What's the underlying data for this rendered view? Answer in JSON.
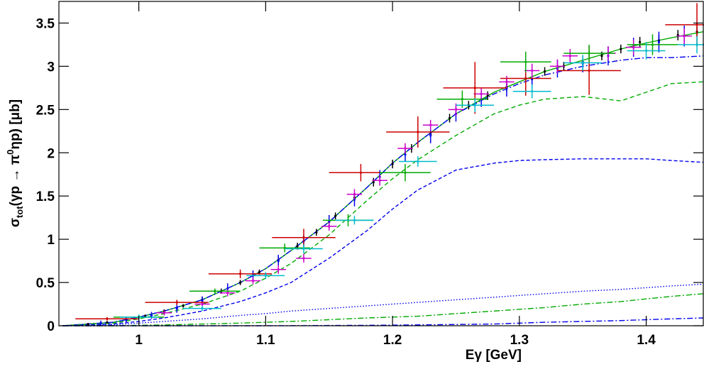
{
  "chart_data": {
    "type": "errorbar",
    "x_label": "Eγ  [GeV]",
    "y_label_parts": [
      "σ",
      "tot",
      "(γp → π",
      "0",
      "ηp)  [μb]"
    ],
    "xlim": [
      0.937,
      1.445
    ],
    "ylim": [
      0,
      3.75
    ],
    "xticks": [
      1,
      1.1,
      1.2,
      1.3,
      1.4
    ],
    "yticks": [
      0,
      0.5,
      1,
      1.5,
      2,
      2.5,
      3,
      3.5
    ],
    "series": [
      {
        "color": "#000000",
        "x": [
          0.96,
          0.975,
          0.99,
          1.005,
          1.02,
          1.035,
          1.05,
          1.065,
          1.08,
          1.095,
          1.11,
          1.125,
          1.14,
          1.155,
          1.17,
          1.185,
          1.2,
          1.215,
          1.23,
          1.245,
          1.26,
          1.275,
          1.29,
          1.305,
          1.32,
          1.335,
          1.35,
          1.365,
          1.38,
          1.395,
          1.41,
          1.425,
          1.44
        ],
        "values": [
          0.02,
          0.04,
          0.07,
          0.11,
          0.17,
          0.23,
          0.3,
          0.4,
          0.5,
          0.62,
          0.76,
          0.92,
          1.08,
          1.27,
          1.48,
          1.66,
          1.87,
          2.05,
          2.22,
          2.4,
          2.55,
          2.66,
          2.76,
          2.86,
          2.94,
          3.0,
          3.05,
          3.12,
          3.2,
          3.28,
          3.3,
          3.36,
          3.4
        ],
        "yerr": [
          0.01,
          0.01,
          0.02,
          0.02,
          0.02,
          0.02,
          0.03,
          0.03,
          0.03,
          0.03,
          0.04,
          0.04,
          0.04,
          0.04,
          0.04,
          0.05,
          0.05,
          0.05,
          0.05,
          0.05,
          0.05,
          0.05,
          0.05,
          0.05,
          0.05,
          0.05,
          0.05,
          0.05,
          0.05,
          0.06,
          0.06,
          0.06,
          0.06
        ]
      },
      {
        "color": "#0000ee",
        "x": [
          0.97,
          0.99,
          1.01,
          1.03,
          1.05,
          1.07,
          1.09,
          1.11,
          1.13,
          1.15,
          1.17,
          1.19,
          1.21,
          1.23,
          1.25,
          1.27,
          1.29,
          1.31,
          1.33,
          1.35,
          1.37,
          1.39,
          1.41,
          1.43
        ],
        "values": [
          0.03,
          0.07,
          0.12,
          0.2,
          0.29,
          0.43,
          0.58,
          0.75,
          0.98,
          1.2,
          1.46,
          1.72,
          1.98,
          2.2,
          2.45,
          2.62,
          2.75,
          2.85,
          2.97,
          3.03,
          3.12,
          3.22,
          3.28,
          3.35
        ],
        "yerr": [
          0.03,
          0.03,
          0.04,
          0.05,
          0.05,
          0.06,
          0.06,
          0.07,
          0.07,
          0.08,
          0.08,
          0.08,
          0.08,
          0.09,
          0.09,
          0.09,
          0.1,
          0.1,
          0.1,
          0.1,
          0.11,
          0.11,
          0.12,
          0.12
        ]
      },
      {
        "color": "#cc00cc",
        "x": [
          1.02,
          1.05,
          1.07,
          1.09,
          1.11,
          1.13,
          1.15,
          1.17,
          1.19,
          1.21,
          1.23,
          1.25,
          1.27,
          1.29,
          1.31,
          1.33,
          1.34,
          1.37,
          1.39,
          1.43
        ],
        "values": [
          0.15,
          0.25,
          0.38,
          0.52,
          0.65,
          0.78,
          1.15,
          1.52,
          1.68,
          2.05,
          2.32,
          2.5,
          2.68,
          2.82,
          2.95,
          3.0,
          3.12,
          3.15,
          3.22,
          3.35
        ],
        "xerr": [
          0.006,
          0.006,
          0.006,
          0.006,
          0.006,
          0.006,
          0.006,
          0.006,
          0.006,
          0.006,
          0.006,
          0.006,
          0.006,
          0.006,
          0.006,
          0.006,
          0.006,
          0.006,
          0.006,
          0.006
        ],
        "yerr": [
          0.03,
          0.03,
          0.04,
          0.04,
          0.05,
          0.05,
          0.05,
          0.06,
          0.06,
          0.06,
          0.06,
          0.07,
          0.07,
          0.07,
          0.08,
          0.08,
          0.08,
          0.08,
          0.09,
          0.09
        ]
      },
      {
        "color": "#cc0000",
        "x": [
          0.975,
          1.03,
          1.08,
          1.13,
          1.175,
          1.22,
          1.265,
          1.305,
          1.355,
          1.44
        ],
        "values": [
          0.08,
          0.27,
          0.6,
          1.02,
          1.77,
          2.24,
          2.75,
          2.86,
          2.95,
          3.48
        ],
        "xerr": [
          0.025,
          0.025,
          0.025,
          0.025,
          0.025,
          0.025,
          0.025,
          0.02,
          0.025,
          0.025
        ],
        "yerr": [
          0.02,
          0.03,
          0.05,
          0.1,
          0.1,
          0.18,
          0.3,
          0.2,
          0.28,
          0.25
        ]
      },
      {
        "color": "#00aa00",
        "x": [
          1.0,
          1.06,
          1.115,
          1.165,
          1.21,
          1.255,
          1.305,
          1.355,
          1.405
        ],
        "values": [
          0.1,
          0.4,
          0.9,
          1.22,
          1.77,
          2.62,
          3.05,
          3.15,
          3.25
        ],
        "xerr": [
          0.02,
          0.02,
          0.02,
          0.02,
          0.02,
          0.02,
          0.02,
          0.02,
          0.02
        ],
        "yerr": [
          0.02,
          0.03,
          0.05,
          0.07,
          0.1,
          0.1,
          0.12,
          0.1,
          0.12
        ]
      },
      {
        "color": "#00bbcc",
        "x": [
          1.0,
          1.05,
          1.1,
          1.13,
          1.17,
          1.22,
          1.265,
          1.31,
          1.35,
          1.4,
          1.44
        ],
        "values": [
          0.1,
          0.2,
          0.58,
          0.89,
          1.22,
          1.9,
          2.55,
          2.71,
          3.04,
          3.18,
          3.25
        ],
        "xerr": [
          0.015,
          0.015,
          0.015,
          0.015,
          0.015,
          0.015,
          0.015,
          0.015,
          0.015,
          0.015,
          0.015
        ],
        "yerr": [
          0.03,
          0.03,
          0.04,
          0.05,
          0.05,
          0.06,
          0.08,
          0.08,
          0.09,
          0.1,
          0.1
        ]
      }
    ],
    "curve_x": [
      0.94,
      0.98,
      1.0,
      1.02,
      1.05,
      1.08,
      1.1,
      1.12,
      1.15,
      1.18,
      1.2,
      1.22,
      1.25,
      1.28,
      1.3,
      1.32,
      1.35,
      1.38,
      1.4,
      1.42,
      1.445
    ],
    "curves": [
      {
        "color": "#00aa00",
        "dash": "none",
        "values": [
          0,
          0.04,
          0.1,
          0.17,
          0.3,
          0.5,
          0.66,
          0.87,
          1.2,
          1.6,
          1.88,
          2.12,
          2.45,
          2.7,
          2.82,
          2.94,
          3.07,
          3.2,
          3.27,
          3.33,
          3.4
        ]
      },
      {
        "color": "#0000ee",
        "dash": "8 3 2 3",
        "values": [
          0,
          0.04,
          0.1,
          0.17,
          0.3,
          0.5,
          0.66,
          0.87,
          1.2,
          1.6,
          1.88,
          2.12,
          2.45,
          2.68,
          2.8,
          2.9,
          3.0,
          3.07,
          3.1,
          3.1,
          3.12
        ]
      },
      {
        "color": "#00aa00",
        "dash": "6 4",
        "values": [
          0,
          0.03,
          0.08,
          0.14,
          0.25,
          0.4,
          0.55,
          0.72,
          1.05,
          1.45,
          1.7,
          1.92,
          2.2,
          2.45,
          2.55,
          2.62,
          2.65,
          2.6,
          2.7,
          2.8,
          2.82
        ]
      },
      {
        "color": "#0000ee",
        "dash": "5 3",
        "values": [
          0,
          0.02,
          0.05,
          0.09,
          0.17,
          0.28,
          0.38,
          0.5,
          0.78,
          1.1,
          1.35,
          1.57,
          1.8,
          1.88,
          1.91,
          1.92,
          1.93,
          1.93,
          1.93,
          1.91,
          1.89
        ]
      },
      {
        "color": "#0000ee",
        "dash": "1.5 2.5",
        "values": [
          0,
          0.01,
          0.03,
          0.05,
          0.08,
          0.12,
          0.14,
          0.17,
          0.2,
          0.23,
          0.25,
          0.27,
          0.3,
          0.33,
          0.35,
          0.37,
          0.4,
          0.42,
          0.44,
          0.46,
          0.48
        ]
      },
      {
        "color": "#00aa00",
        "dash": "8 3 2 3",
        "values": [
          0,
          0,
          0.005,
          0.01,
          0.02,
          0.03,
          0.04,
          0.05,
          0.07,
          0.09,
          0.1,
          0.11,
          0.14,
          0.17,
          0.19,
          0.21,
          0.25,
          0.28,
          0.31,
          0.34,
          0.37
        ]
      },
      {
        "color": "#0000ee",
        "dash": "8 3 2 3",
        "values": [
          0,
          0,
          0,
          0,
          0,
          0,
          0,
          0.001,
          0.003,
          0.005,
          0.007,
          0.01,
          0.015,
          0.02,
          0.03,
          0.04,
          0.05,
          0.06,
          0.07,
          0.08,
          0.09
        ]
      }
    ]
  }
}
